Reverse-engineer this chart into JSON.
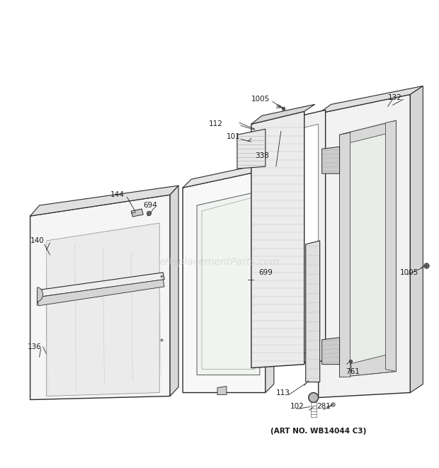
{
  "art_no": "(ART NO. WB14044 C3)",
  "watermark": "eReplacementParts.com",
  "bg_color": "#ffffff",
  "fig_width": 6.2,
  "fig_height": 6.61,
  "dpi": 100
}
